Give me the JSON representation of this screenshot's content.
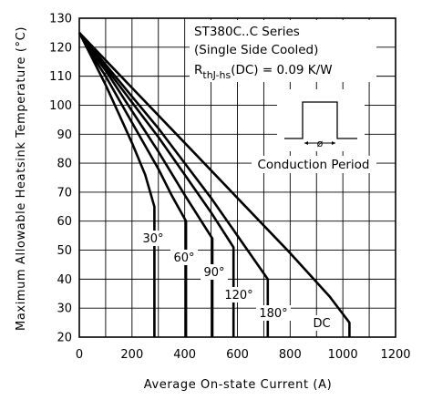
{
  "chart_data": {
    "type": "line",
    "title_lines": [
      "ST380C..C Series",
      "(Single Side Cooled)"
    ],
    "resistance_note": {
      "prefix": "R",
      "subscript": "thJ-hs",
      "suffix": "(DC) = 0.09 K/W"
    },
    "inset_caption": "Conduction Period",
    "inset_symbol": "ø",
    "xlabel": "Average On-state Current (A)",
    "ylabel": "Maximum Allowable Heatsink Temperature (°C)",
    "xlim": [
      0,
      1200
    ],
    "ylim": [
      20,
      130
    ],
    "x_ticks": [
      0,
      200,
      400,
      600,
      800,
      1000,
      1200
    ],
    "y_ticks": [
      20,
      30,
      40,
      50,
      60,
      70,
      80,
      90,
      100,
      110,
      120,
      130
    ],
    "grid": true,
    "series": [
      {
        "name": "30°",
        "points": [
          [
            0,
            125
          ],
          [
            50,
            116
          ],
          [
            100,
            107
          ],
          [
            150,
            97
          ],
          [
            200,
            87
          ],
          [
            250,
            76
          ],
          [
            285,
            65
          ],
          [
            285,
            20
          ]
        ]
      },
      {
        "name": "60°",
        "points": [
          [
            0,
            125
          ],
          [
            50,
            117
          ],
          [
            100,
            110
          ],
          [
            150,
            102
          ],
          [
            200,
            94
          ],
          [
            250,
            86
          ],
          [
            300,
            78
          ],
          [
            350,
            69
          ],
          [
            405,
            60
          ],
          [
            405,
            20
          ]
        ]
      },
      {
        "name": "90°",
        "points": [
          [
            0,
            125
          ],
          [
            50,
            118
          ],
          [
            100,
            112
          ],
          [
            200,
            98
          ],
          [
            300,
            84
          ],
          [
            400,
            69
          ],
          [
            505,
            54
          ],
          [
            505,
            20
          ]
        ]
      },
      {
        "name": "120°",
        "points": [
          [
            0,
            125
          ],
          [
            100,
            113
          ],
          [
            200,
            101
          ],
          [
            300,
            89
          ],
          [
            400,
            76
          ],
          [
            500,
            63
          ],
          [
            585,
            51
          ],
          [
            585,
            20
          ]
        ]
      },
      {
        "name": "180°",
        "points": [
          [
            0,
            125
          ],
          [
            100,
            114
          ],
          [
            200,
            103
          ],
          [
            300,
            92
          ],
          [
            400,
            80
          ],
          [
            500,
            68
          ],
          [
            600,
            55
          ],
          [
            715,
            40
          ],
          [
            715,
            20
          ]
        ]
      },
      {
        "name": "DC",
        "points": [
          [
            0,
            125
          ],
          [
            200,
            106
          ],
          [
            400,
            87
          ],
          [
            600,
            68
          ],
          [
            800,
            49
          ],
          [
            950,
            34
          ],
          [
            1025,
            25
          ],
          [
            1025,
            20
          ]
        ]
      }
    ]
  }
}
